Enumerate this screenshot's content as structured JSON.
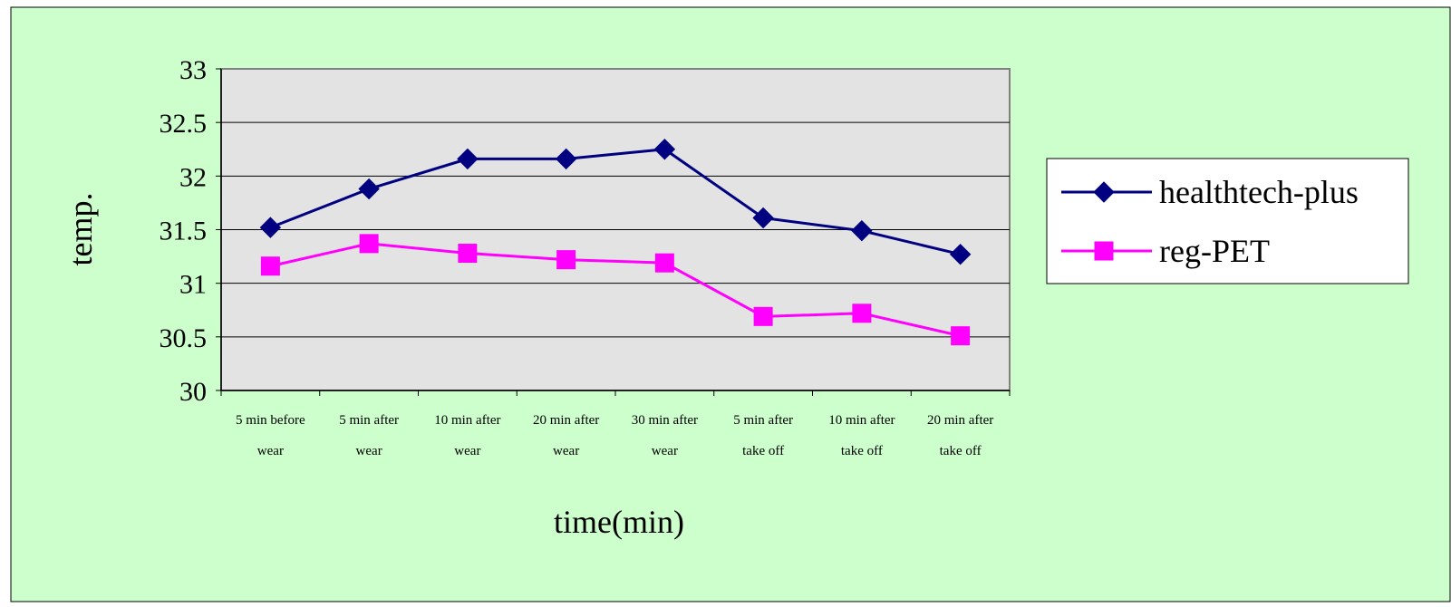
{
  "colors": {
    "chart_background": "#ccffcc",
    "plot_background": "#e3e3e3",
    "gridline": "#000000",
    "legend_background": "#ffffff"
  },
  "chart_data": {
    "type": "line",
    "xlabel": "time(min)",
    "ylabel": "temp.",
    "ylim": [
      30,
      33
    ],
    "yticks": [
      "30",
      "30.5",
      "31",
      "31.5",
      "32",
      "32.5",
      "33"
    ],
    "grid": "horizontal",
    "legend_position": "right",
    "categories": [
      [
        "5 min before",
        "wear"
      ],
      [
        "5 min after",
        "wear"
      ],
      [
        "10 min after",
        "wear"
      ],
      [
        "20 min after",
        "wear"
      ],
      [
        "30 min after",
        "wear"
      ],
      [
        "5 min after",
        "take off"
      ],
      [
        "10 min after",
        "take off"
      ],
      [
        "20 min after",
        "take off"
      ]
    ],
    "series": [
      {
        "name": "healthtech-plus",
        "color": "#000080",
        "marker": "diamond",
        "values": [
          31.52,
          31.88,
          32.16,
          32.16,
          32.25,
          31.61,
          31.49,
          31.27
        ]
      },
      {
        "name": "reg-PET",
        "color": "#ff00ff",
        "marker": "square",
        "values": [
          31.16,
          31.37,
          31.28,
          31.22,
          31.19,
          30.69,
          30.72,
          30.51
        ]
      }
    ]
  }
}
